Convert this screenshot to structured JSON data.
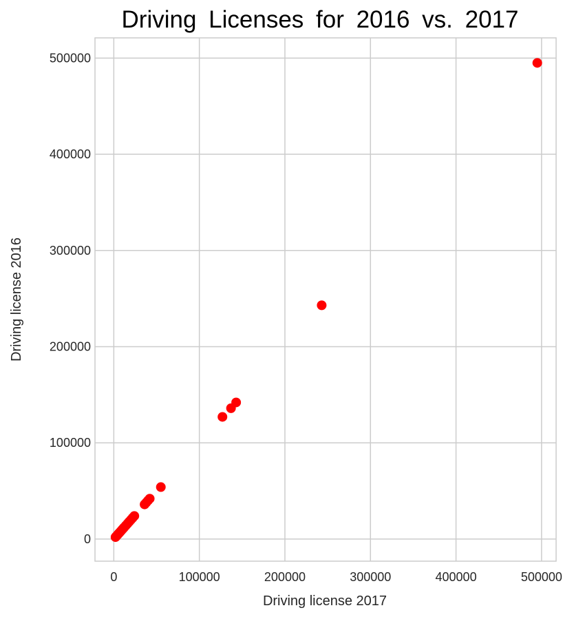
{
  "chart_data": {
    "type": "scatter",
    "title": "Driving  Licenses  for  2016  vs.  2017",
    "xlabel": "Driving license 2017",
    "ylabel": "Driving license 2016",
    "xlim": [
      -22000,
      517000
    ],
    "ylim": [
      -23000,
      521000
    ],
    "xticks": [
      0,
      100000,
      200000,
      300000,
      400000,
      500000
    ],
    "yticks": [
      0,
      100000,
      200000,
      300000,
      400000,
      500000
    ],
    "xtick_labels": [
      "0",
      "100000",
      "200000",
      "300000",
      "400000",
      "500000"
    ],
    "ytick_labels": [
      "0",
      "100000",
      "200000",
      "300000",
      "400000",
      "500000"
    ],
    "grid": true,
    "color": "#ff0000",
    "x": [
      2000,
      3000,
      4500,
      6000,
      7500,
      9000,
      10500,
      12000,
      14000,
      16000,
      18000,
      20000,
      22000,
      24000,
      36000,
      38000,
      40000,
      42000,
      55000,
      127000,
      137000,
      143000,
      243000,
      495000
    ],
    "y": [
      2000,
      3000,
      4500,
      6000,
      7500,
      9000,
      10500,
      12000,
      14000,
      16000,
      18000,
      20000,
      22000,
      24000,
      36000,
      38000,
      40000,
      42000,
      54000,
      127000,
      136000,
      142000,
      243000,
      495000
    ]
  }
}
